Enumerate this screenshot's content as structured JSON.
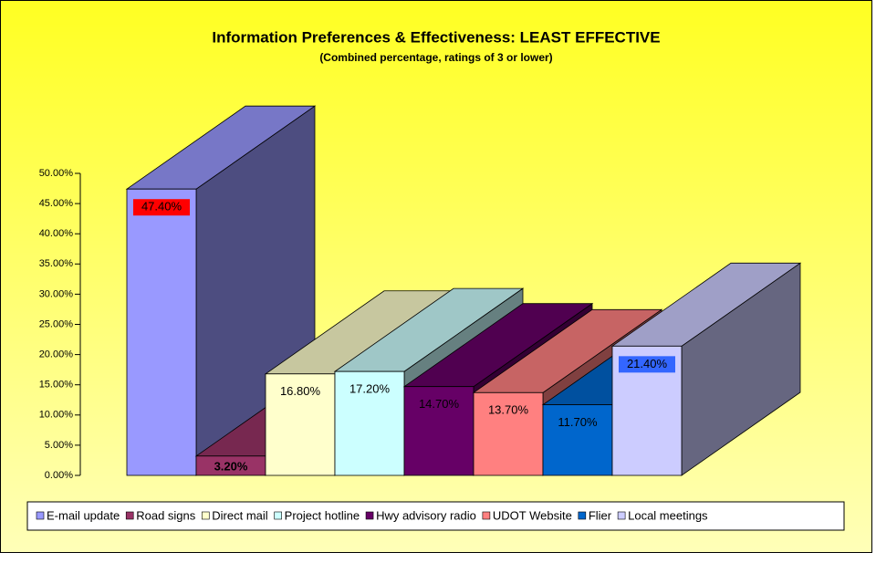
{
  "chart_data": {
    "type": "bar3d",
    "title": "Information Preferences & Effectiveness: LEAST EFFECTIVE",
    "subtitle": "(Combined percentage, ratings of 3 or lower)",
    "categories": [
      "E-mail update",
      "Road signs",
      "Direct mail",
      "Project hotline",
      "Hwy advisory radio",
      "UDOT Website",
      "Flier",
      "Local meetings"
    ],
    "values": [
      47.4,
      3.2,
      16.8,
      17.2,
      14.7,
      13.7,
      11.7,
      21.4
    ],
    "value_labels": [
      "47.40%",
      "3.20%",
      "16.80%",
      "17.20%",
      "14.70%",
      "13.70%",
      "11.70%",
      "21.40%"
    ],
    "colors": [
      "#9999ff",
      "#993366",
      "#ffffcc",
      "#ccffff",
      "#660066",
      "#ff8080",
      "#0066cc",
      "#ccccff"
    ],
    "ylim": [
      0,
      50
    ],
    "yticks": [
      {
        "value": 0,
        "label": "0.00%"
      },
      {
        "value": 5,
        "label": "5.00%"
      },
      {
        "value": 10,
        "label": "10.00%"
      },
      {
        "value": 15,
        "label": "15.00%"
      },
      {
        "value": 20,
        "label": "20.00%"
      },
      {
        "value": 25,
        "label": "25.00%"
      },
      {
        "value": 30,
        "label": "30.00%"
      },
      {
        "value": 35,
        "label": "35.00%"
      },
      {
        "value": 40,
        "label": "40.00%"
      },
      {
        "value": 45,
        "label": "45.00%"
      },
      {
        "value": 50,
        "label": "50.00%"
      }
    ],
    "legend": "bottom"
  }
}
